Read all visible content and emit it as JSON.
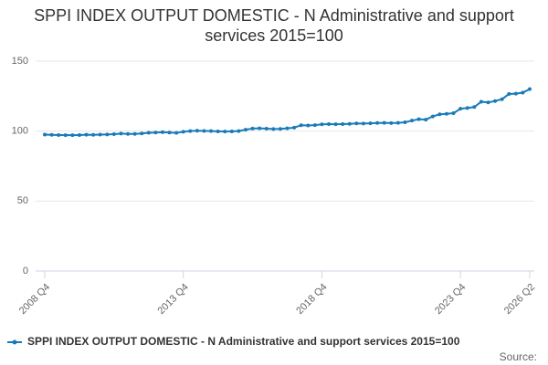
{
  "chart_data": {
    "type": "line",
    "title": "SPPI INDEX OUTPUT DOMESTIC - N Administrative and support services 2015=100",
    "categories": [
      "2008 Q4",
      null,
      null,
      null,
      null,
      null,
      null,
      null,
      null,
      null,
      null,
      null,
      null,
      null,
      null,
      null,
      null,
      null,
      null,
      null,
      "2013 Q4",
      null,
      null,
      null,
      null,
      null,
      null,
      null,
      null,
      null,
      null,
      null,
      null,
      null,
      null,
      null,
      null,
      null,
      null,
      null,
      "2018 Q4",
      null,
      null,
      null,
      null,
      null,
      null,
      null,
      null,
      null,
      null,
      null,
      null,
      null,
      null,
      null,
      null,
      null,
      null,
      null,
      "2023 Q4",
      null,
      null,
      null,
      null,
      null,
      null,
      null,
      null,
      null,
      "2026 Q2"
    ],
    "series": [
      {
        "name": "SPPI INDEX OUTPUT DOMESTIC - N Administrative and support services 2015=100",
        "color": "#1a7bb9",
        "values": [
          97.5,
          97.3,
          97.2,
          97.1,
          97.1,
          97.2,
          97.4,
          97.3,
          97.5,
          97.6,
          97.8,
          98.2,
          98.0,
          98.0,
          98.3,
          98.8,
          99.0,
          99.2,
          99.0,
          98.7,
          99.5,
          100.0,
          100.3,
          100.1,
          100.0,
          99.8,
          99.7,
          99.8,
          100.0,
          101.0,
          101.8,
          102.0,
          101.7,
          101.5,
          101.6,
          102.0,
          102.5,
          104.2,
          104.0,
          104.3,
          104.8,
          105.0,
          104.9,
          105.0,
          105.2,
          105.5,
          105.4,
          105.6,
          105.8,
          105.9,
          105.7,
          105.9,
          106.3,
          107.5,
          108.5,
          108.2,
          110.5,
          112.0,
          112.3,
          112.8,
          116.0,
          116.5,
          117.2,
          121.0,
          120.5,
          121.5,
          122.8,
          126.5,
          126.8,
          127.5,
          130.0
        ]
      }
    ],
    "ylim": [
      0,
      150
    ],
    "yticks": [
      0,
      50,
      100,
      150
    ],
    "grid": true,
    "source": "Source:"
  }
}
